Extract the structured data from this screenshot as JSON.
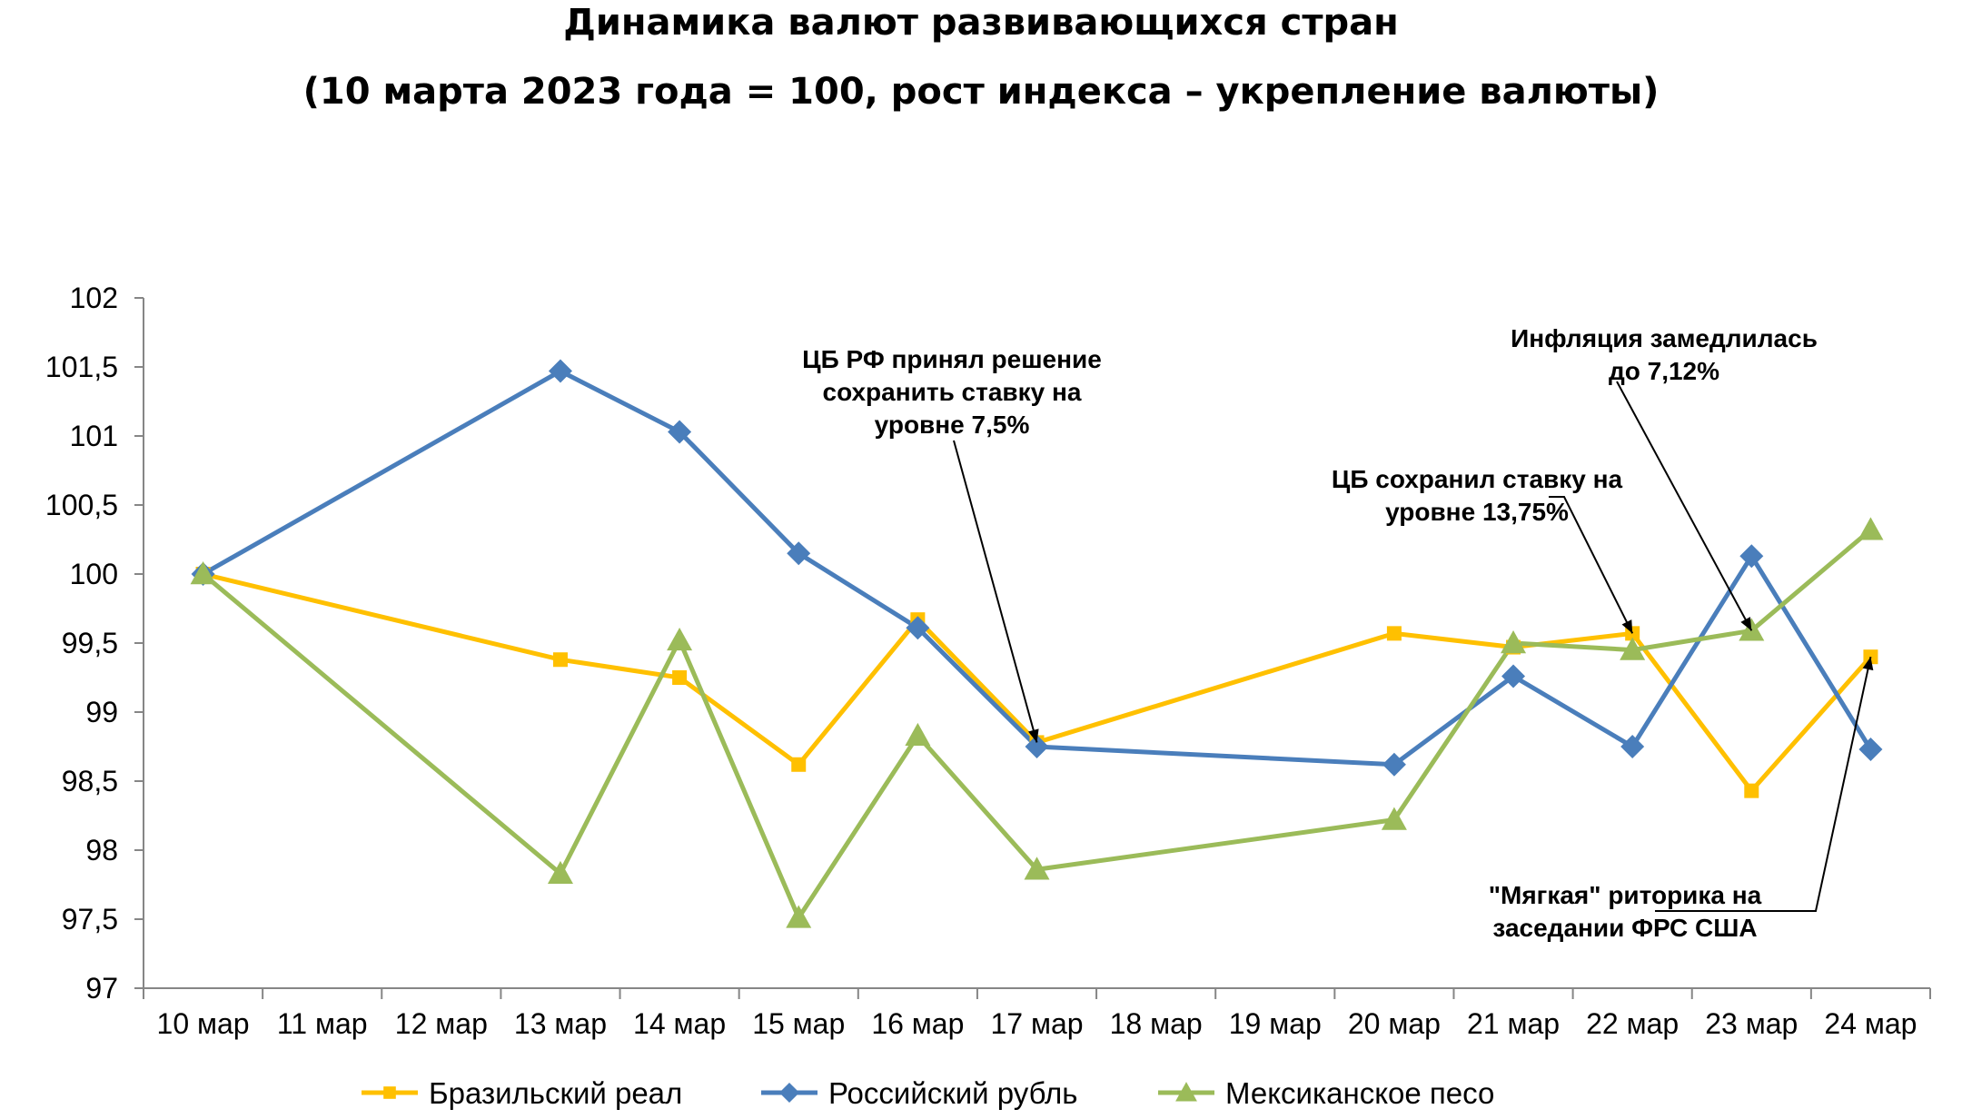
{
  "chart_data": {
    "type": "line",
    "title": "Динамика валют развивающихся стран",
    "subtitle": "(10 марта 2023 года = 100, рост индекса – укрепление валюты)",
    "categories": [
      "10 мар",
      "11 мар",
      "12 мар",
      "13 мар",
      "14 мар",
      "15 мар",
      "16 мар",
      "17 мар",
      "18 мар",
      "19 мар",
      "20 мар",
      "21 мар",
      "22 мар",
      "23 мар",
      "24 мар"
    ],
    "ylim": [
      97,
      102
    ],
    "yticks": [
      "97",
      "97,5",
      "98",
      "98,5",
      "99",
      "99,5",
      "100",
      "100,5",
      "101",
      "101,5",
      "102"
    ],
    "grid": false,
    "legend_position": "bottom",
    "series": [
      {
        "name": "Бразильский реал",
        "color": "#FFC000",
        "marker": "square",
        "values": [
          100,
          null,
          null,
          99.38,
          99.25,
          98.62,
          99.67,
          98.78,
          null,
          null,
          99.57,
          99.47,
          99.57,
          98.43,
          99.4
        ]
      },
      {
        "name": "Российский рубль",
        "color": "#4A7EBB",
        "marker": "diamond",
        "values": [
          100,
          null,
          null,
          101.47,
          101.03,
          100.15,
          99.61,
          98.75,
          null,
          null,
          98.62,
          99.26,
          98.75,
          100.13,
          98.73
        ]
      },
      {
        "name": "Мексиканское песо",
        "color": "#9BBB59",
        "marker": "triangle",
        "values": [
          100,
          null,
          null,
          97.83,
          99.52,
          97.51,
          98.83,
          97.86,
          null,
          null,
          98.22,
          99.5,
          99.45,
          99.59,
          100.32
        ]
      }
    ],
    "annotations": [
      {
        "lines": [
          "ЦБ РФ принял решение",
          "сохранить ставку на",
          "уровне 7,5%"
        ],
        "points_to": {
          "x": "17 мар",
          "y": 98.78
        }
      },
      {
        "lines": [
          "Инфляция замедлилась",
          "до 7,12%"
        ],
        "points_to": {
          "x": "23 мар",
          "y": 99.59
        }
      },
      {
        "lines": [
          "ЦБ сохранил ставку на",
          "уровне 13,75%"
        ],
        "points_to": {
          "x": "22 мар",
          "y": 99.57
        }
      },
      {
        "lines": [
          "\"Мягкая\" риторика на",
          "заседании ФРС США"
        ],
        "points_to": {
          "x": "24 мар",
          "y": 99.4
        }
      }
    ]
  }
}
